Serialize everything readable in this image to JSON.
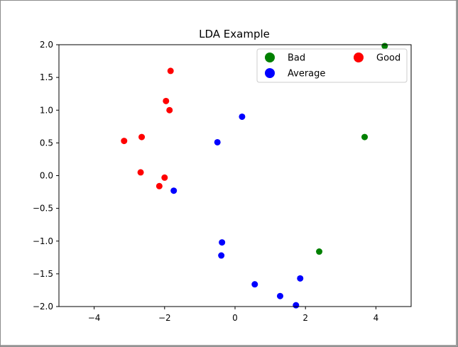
{
  "chart_data": {
    "type": "scatter",
    "title": "LDA Example",
    "xlabel": "",
    "ylabel": "",
    "xlim": [
      -5,
      5
    ],
    "ylim": [
      -2,
      2
    ],
    "x_ticks": [
      -4,
      -2,
      0,
      2,
      4
    ],
    "x_tick_labels": [
      "−4",
      "−2",
      "0",
      "2",
      "4"
    ],
    "y_ticks": [
      -2.0,
      -1.5,
      -1.0,
      -0.5,
      0.0,
      0.5,
      1.0,
      1.5,
      2.0
    ],
    "y_tick_labels": [
      "−2.0",
      "−1.5",
      "−1.0",
      "−0.5",
      "0.0",
      "0.5",
      "1.0",
      "1.5",
      "2.0"
    ],
    "grid": false,
    "legend_position": "top-right",
    "series": [
      {
        "name": "Bad",
        "color": "#008000",
        "points": [
          [
            4.25,
            1.98
          ],
          [
            3.68,
            0.59
          ],
          [
            2.39,
            -1.16
          ]
        ]
      },
      {
        "name": "Average",
        "color": "#0000ff",
        "points": [
          [
            0.2,
            0.9
          ],
          [
            -0.5,
            0.51
          ],
          [
            -1.74,
            -0.23
          ],
          [
            -0.37,
            -1.02
          ],
          [
            -0.39,
            -1.22
          ],
          [
            0.56,
            -1.66
          ],
          [
            1.85,
            -1.57
          ],
          [
            1.28,
            -1.84
          ],
          [
            1.73,
            -1.98
          ]
        ]
      },
      {
        "name": "Good",
        "color": "#ff0000",
        "points": [
          [
            -1.83,
            1.6
          ],
          [
            -1.96,
            1.14
          ],
          [
            -1.86,
            1.0
          ],
          [
            -2.65,
            0.59
          ],
          [
            -3.15,
            0.53
          ],
          [
            -2.68,
            0.05
          ],
          [
            -2.0,
            -0.03
          ],
          [
            -2.15,
            -0.16
          ]
        ]
      }
    ]
  }
}
